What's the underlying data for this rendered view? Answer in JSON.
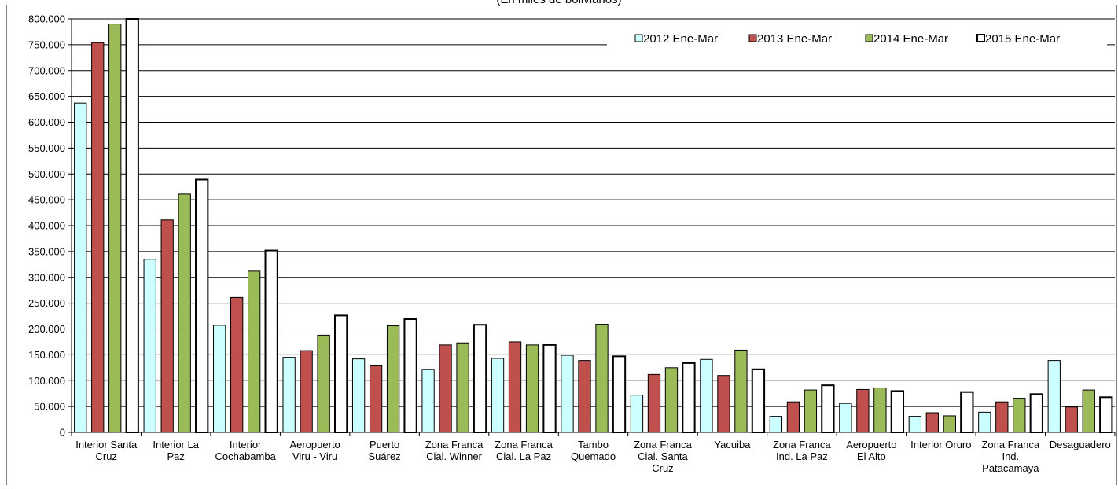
{
  "chart_data": {
    "type": "bar",
    "subtitle": "(En miles de bolivianos)",
    "categories": [
      [
        "Interior Santa",
        "Cruz"
      ],
      [
        "Interior La",
        "Paz"
      ],
      [
        "Interior",
        "Cochabamba"
      ],
      [
        "Aeropuerto",
        "Viru - Viru"
      ],
      [
        "Puerto",
        "Suárez"
      ],
      [
        "Zona Franca",
        "Cial. Winner"
      ],
      [
        "Zona Franca",
        "Cial. La Paz"
      ],
      [
        "Tambo",
        "Quemado"
      ],
      [
        "Zona Franca",
        "Cial. Santa",
        "Cruz"
      ],
      [
        "Yacuiba"
      ],
      [
        "Zona Franca",
        "Ind. La Paz"
      ],
      [
        "Aeropuerto",
        "El Alto"
      ],
      [
        "Interior Oruro"
      ],
      [
        "Zona Franca",
        "Ind.",
        "Patacamaya"
      ],
      [
        "Desaguadero"
      ]
    ],
    "series": [
      {
        "name": "2012 Ene-Mar",
        "color": "#ccffff",
        "values": [
          637000,
          335000,
          207000,
          145000,
          142000,
          122000,
          143000,
          149000,
          72000,
          141000,
          31000,
          56000,
          31000,
          39000,
          139000
        ]
      },
      {
        "name": "2013 Ene-Mar",
        "color": "#c0504d",
        "values": [
          754000,
          411000,
          261000,
          158000,
          130000,
          169000,
          175000,
          139000,
          112000,
          110000,
          59000,
          83000,
          38000,
          59000,
          49000
        ]
      },
      {
        "name": "2014 Ene-Mar",
        "color": "#9bbb59",
        "values": [
          790000,
          461000,
          312000,
          188000,
          206000,
          173000,
          169000,
          209000,
          125000,
          159000,
          82000,
          86000,
          32000,
          66000,
          82000
        ]
      },
      {
        "name": "2015 Ene-Mar",
        "color": "#ffffff",
        "values": [
          800000,
          489000,
          352000,
          226000,
          219000,
          208000,
          169000,
          147000,
          134000,
          122000,
          91000,
          80000,
          78000,
          74000,
          68000
        ]
      }
    ],
    "ylim": [
      0,
      800000
    ],
    "yticks": [
      "0",
      "50.000",
      "100.000",
      "150.000",
      "200.000",
      "250.000",
      "300.000",
      "350.000",
      "400.000",
      "450.000",
      "500.000",
      "550.000",
      "600.000",
      "650.000",
      "700.000",
      "750.000",
      "800.000"
    ],
    "grid": true,
    "legend_position": "top-right"
  }
}
